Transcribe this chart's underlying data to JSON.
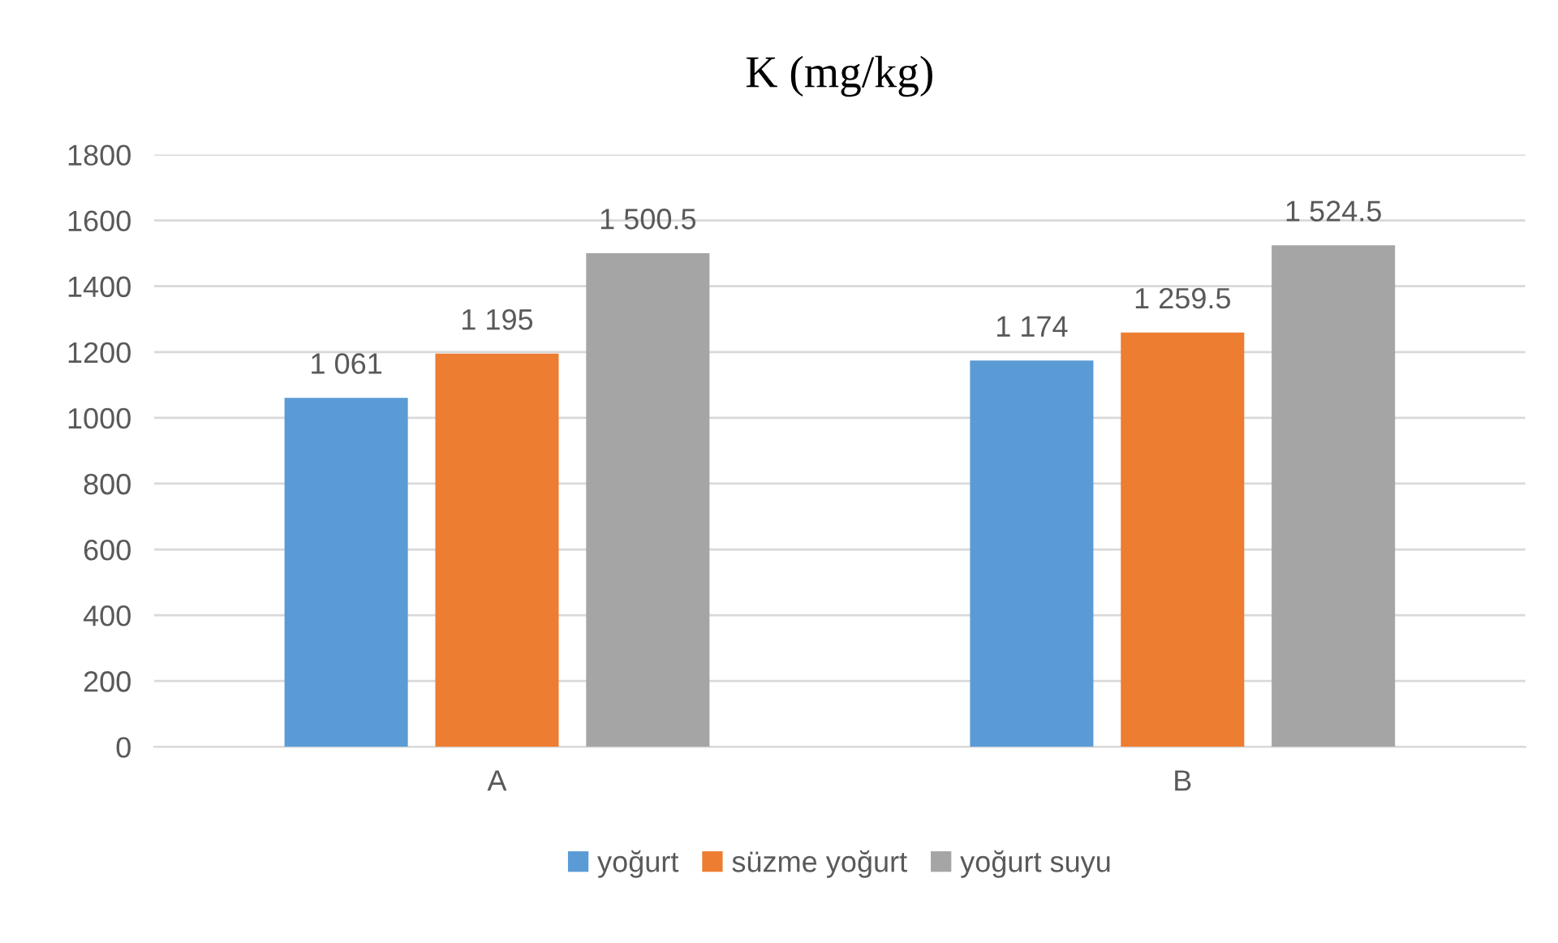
{
  "chart_data": {
    "type": "bar",
    "title": "K (mg/kg)",
    "categories": [
      "A",
      "B"
    ],
    "series": [
      {
        "name": "yoğurt",
        "color": "#5b9bd5",
        "values": [
          1061,
          1174
        ],
        "value_labels": [
          "1 061",
          "1 174"
        ]
      },
      {
        "name": "süzme yoğurt",
        "color": "#ed7d31",
        "values": [
          1195,
          1259.5
        ],
        "value_labels": [
          "1 195",
          "1 259.5"
        ]
      },
      {
        "name": "yoğurt suyu",
        "color": "#a5a5a5",
        "values": [
          1500.5,
          1524.5
        ],
        "value_labels": [
          "1 500.5",
          "1 524.5"
        ]
      }
    ],
    "ylim": [
      0,
      1800
    ],
    "yticks": [
      0,
      200,
      400,
      600,
      800,
      1000,
      1200,
      1400,
      1600,
      1800
    ],
    "grid": "y",
    "legend": "bottom"
  }
}
